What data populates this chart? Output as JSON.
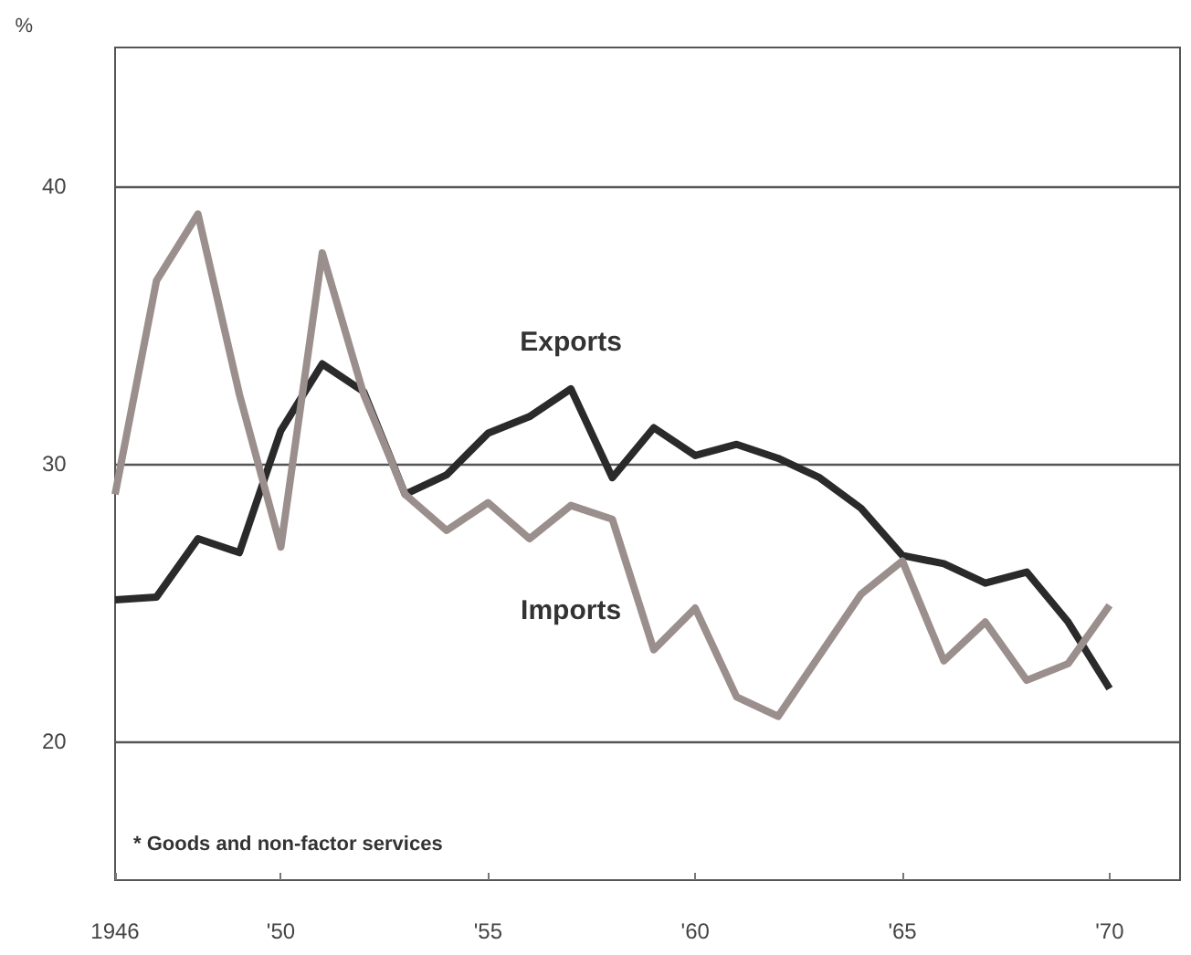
{
  "chart_data": {
    "type": "line",
    "ylabel": "%",
    "x": [
      1946,
      1947,
      1948,
      1949,
      1950,
      1951,
      1952,
      1953,
      1954,
      1955,
      1956,
      1957,
      1958,
      1959,
      1960,
      1961,
      1962,
      1963,
      1964,
      1965,
      1966,
      1967,
      1968,
      1969,
      1970
    ],
    "series": [
      {
        "name": "Exports",
        "color": "#2a2a2a",
        "values": [
          25.1,
          25.2,
          27.3,
          26.8,
          31.2,
          33.6,
          32.6,
          28.9,
          29.6,
          31.1,
          31.7,
          32.7,
          29.5,
          31.3,
          30.3,
          30.7,
          30.2,
          29.5,
          28.4,
          26.7,
          26.4,
          25.7,
          26.1,
          24.3,
          21.9
        ]
      },
      {
        "name": "Imports",
        "color": "#9a8f8c",
        "values": [
          28.9,
          36.6,
          39.0,
          32.5,
          27.0,
          37.6,
          32.5,
          28.9,
          27.6,
          28.6,
          27.3,
          28.5,
          28.0,
          23.3,
          24.8,
          21.6,
          20.9,
          23.1,
          25.3,
          26.5,
          22.9,
          24.3,
          22.2,
          22.8,
          24.9
        ]
      }
    ],
    "xlim": [
      1946,
      1971.7
    ],
    "xticks": [
      {
        "value": 1946,
        "label": "1946"
      },
      {
        "value": 1950,
        "label": "'50"
      },
      {
        "value": 1955,
        "label": "'55"
      },
      {
        "value": 1960,
        "label": "'60"
      },
      {
        "value": 1965,
        "label": "'65"
      },
      {
        "value": 1970,
        "label": "'70"
      }
    ],
    "ylim": [
      15,
      45
    ],
    "yticks": [
      20,
      30,
      40
    ],
    "grid": "y",
    "marker": "none",
    "line_style": "solid",
    "annotations": [
      "* Goods and non-factor services"
    ]
  }
}
